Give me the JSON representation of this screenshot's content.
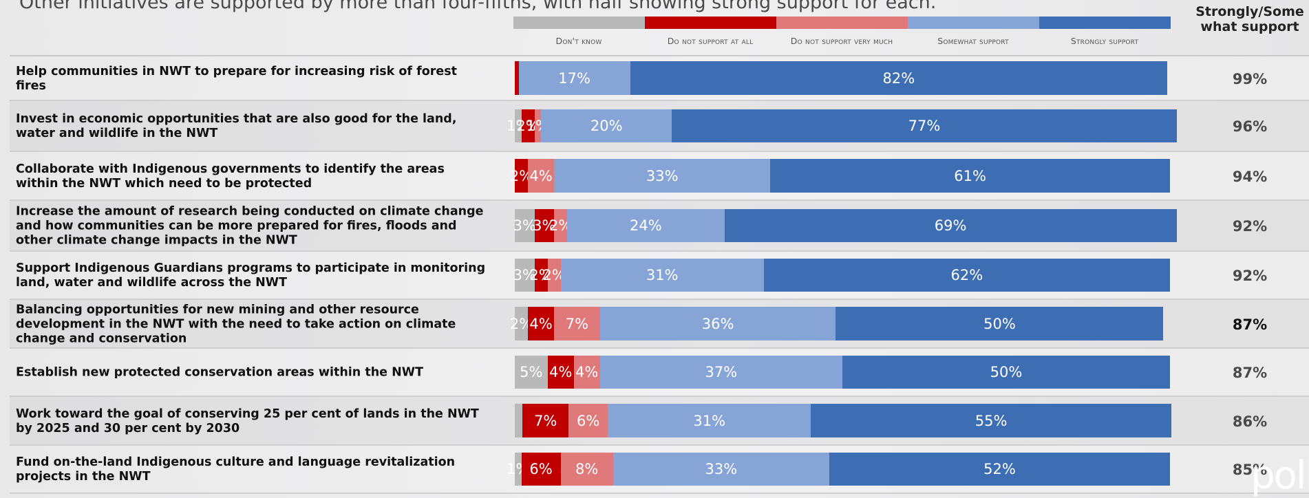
{
  "subtitle": "Other initiatives are supported by more than four-fifths, with half showing strong support for each.",
  "summary_header": "Strongly/Some what support",
  "logo_text": "poll",
  "colors": {
    "dont_know": "#b9b9b9",
    "not_at_all": "#c00000",
    "not_very_much": "#e07a7a",
    "somewhat": "#86a5d6",
    "strongly": "#3d6db3"
  },
  "chart_data": {
    "type": "bar",
    "orientation": "horizontal",
    "stacked": true,
    "xlim": [
      0,
      100
    ],
    "legend_position": "top",
    "series": [
      {
        "name": "Don't know",
        "key": "dont_know"
      },
      {
        "name": "Do not support at all",
        "key": "not_at_all"
      },
      {
        "name": "Do not support very much",
        "key": "not_very_much"
      },
      {
        "name": "Somewhat support",
        "key": "somewhat"
      },
      {
        "name": "Strongly support",
        "key": "strongly"
      }
    ],
    "rows": [
      {
        "label": "Help communities in NWT to prepare for increasing risk of forest fires",
        "values": [
          0,
          0.6,
          0,
          17,
          82
        ],
        "labels": [
          "",
          "",
          "",
          "17%",
          "82%"
        ],
        "total": "99%"
      },
      {
        "label": "Invest in economic opportunities that are also good for the land, water and wildlife in the NWT",
        "values": [
          1,
          2,
          1,
          20,
          77
        ],
        "labels": [
          "1%",
          "2%",
          "1%",
          "20%",
          "77%"
        ],
        "total": "96%"
      },
      {
        "label": "Collaborate with Indigenous governments to identify the areas within the NWT which need to be protected",
        "values": [
          0,
          2,
          4,
          33,
          61
        ],
        "labels": [
          "",
          "2%",
          "4%",
          "33%",
          "61%"
        ],
        "total": "94%"
      },
      {
        "label": "Increase the amount of research being conducted on climate change and how communities can be more prepared for fires, floods and other climate change impacts in the NWT",
        "values": [
          3,
          3,
          2,
          24,
          69
        ],
        "labels": [
          "3%",
          "3%",
          "2%",
          "24%",
          "69%"
        ],
        "total": "92%"
      },
      {
        "label": "Support Indigenous Guardians programs to participate in monitoring land, water and wildlife across the NWT",
        "values": [
          3,
          2,
          2,
          31,
          62
        ],
        "labels": [
          "3%",
          "2%",
          "2%",
          "31%",
          "62%"
        ],
        "total": "92%"
      },
      {
        "label": "Balancing opportunities for new mining and other resource development in the NWT with the need to take action on climate change and conservation",
        "values": [
          2,
          4,
          7,
          36,
          50
        ],
        "labels": [
          "2%",
          "4%",
          "7%",
          "36%",
          "50%"
        ],
        "total": "87%"
      },
      {
        "label": "Establish new protected conservation areas within the NWT",
        "values": [
          5,
          4,
          4,
          37,
          50
        ],
        "labels": [
          "5%",
          "4%",
          "4%",
          "37%",
          "50%"
        ],
        "total": "87%"
      },
      {
        "label": "Work toward the goal of conserving 25 per cent of lands in the NWT by 2025 and 30 per cent by 2030",
        "values": [
          1.2,
          7,
          6,
          31,
          55
        ],
        "labels": [
          "",
          "7%",
          "6%",
          "31%",
          "55%"
        ],
        "total": "86%"
      },
      {
        "label": "Fund on-the-land Indigenous culture and language revitalization projects in the NWT",
        "values": [
          1,
          6,
          8,
          33,
          52
        ],
        "labels": [
          "1%",
          "6%",
          "8%",
          "33%",
          "52%"
        ],
        "total": "85%"
      }
    ]
  }
}
